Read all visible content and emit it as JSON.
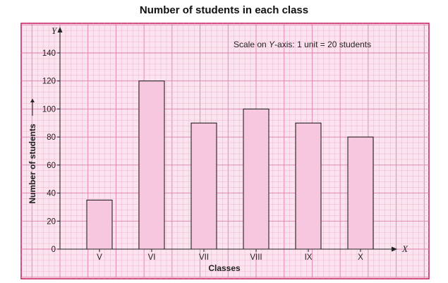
{
  "chart_data": {
    "type": "bar",
    "title": "Number of students in each class",
    "categories": [
      "V",
      "VI",
      "VII",
      "VIII",
      "IX",
      "X"
    ],
    "values": [
      35,
      120,
      90,
      100,
      90,
      80
    ],
    "xlabel": "Classes",
    "ylabel": "Number of students",
    "ylim": [
      0,
      140
    ],
    "yticks": [
      0,
      20,
      40,
      60,
      80,
      100,
      120,
      140
    ],
    "x_axis_name": "X",
    "y_axis_name": "Y",
    "annotation": "Scale on Y-axis: 1 unit = 20 students",
    "annotation_parts": {
      "prefix": "Scale on ",
      "axis": "Y",
      "suffix": "-axis: 1 unit = 20 students"
    },
    "grid": true,
    "colors": {
      "bar_fill": "#f7c6df",
      "bar_stroke": "#111111",
      "paper": "#fbe3ef",
      "grid_minor": "#f0b3cf",
      "grid_major": "#e07fab",
      "border": "#c2185b"
    }
  }
}
